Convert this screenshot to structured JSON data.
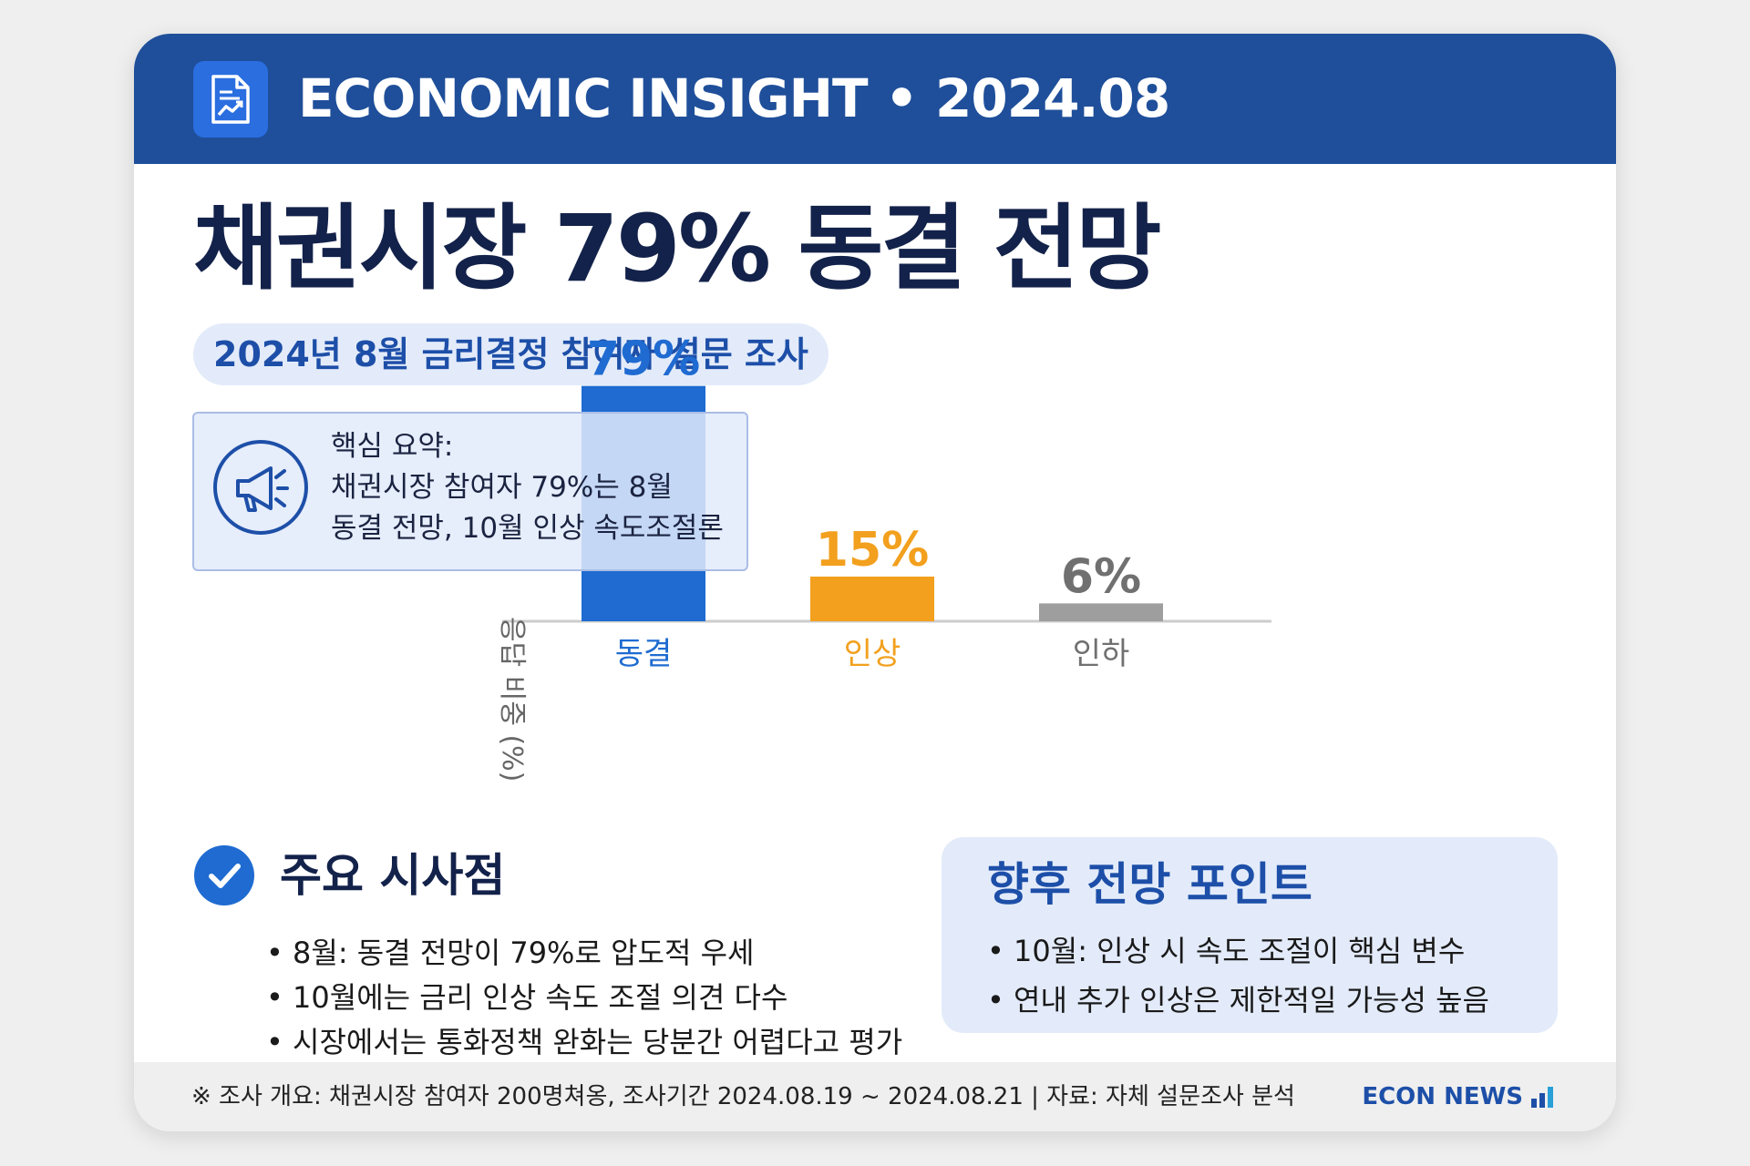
{
  "header": {
    "title": "ECONOMIC INSIGHT • 2024.08",
    "icon": "report-chart-icon"
  },
  "headline": "채권시장 79% 동결 전망",
  "subtitle": "2024년 8월 금리결정 참여자 설문 조사",
  "summary": {
    "icon": "megaphone-icon",
    "lines": [
      "핵심 요약:",
      "채권시장 참여자 79%는 8월",
      "동결 전망, 10월 인상 속도조절론"
    ]
  },
  "chart_data": {
    "type": "bar",
    "categories": [
      "동결",
      "인상",
      "인하"
    ],
    "values": [
      79,
      15,
      6
    ],
    "value_labels": [
      "79%",
      "15%",
      "6%"
    ],
    "colors": [
      "#1f6bd1",
      "#f2a01d",
      "#9e9e9e"
    ],
    "label_colors": [
      "#1f6bd1",
      "#f2a01d",
      "#707070"
    ],
    "ylabel": "응답 비중 (%)",
    "ylim": [
      0,
      100
    ],
    "grid": false
  },
  "insights": {
    "title": "주요 시사점",
    "items": [
      "8월: 동결 전망이 79%로 압도적 우세",
      "10월에는 금리 인상 속도 조절 의견 다수",
      "시장에서는 통화정책 완화는 당분간 어렵다고 평가"
    ]
  },
  "outlook": {
    "title": "향후 전망 포인트",
    "items": [
      "10월: 인상 시 속도 조절이 핵심 변수",
      "연내 추가 인상은 제한적일 가능성 높음"
    ]
  },
  "footer": {
    "note": "※ 조사 개요: 채권시장 참여자 200명쳐옹, 조사기간 2024.08.19 ~ 2024.08.21 | 자료: 자체 설문조사 분석",
    "brand": "ECON NEWS"
  }
}
